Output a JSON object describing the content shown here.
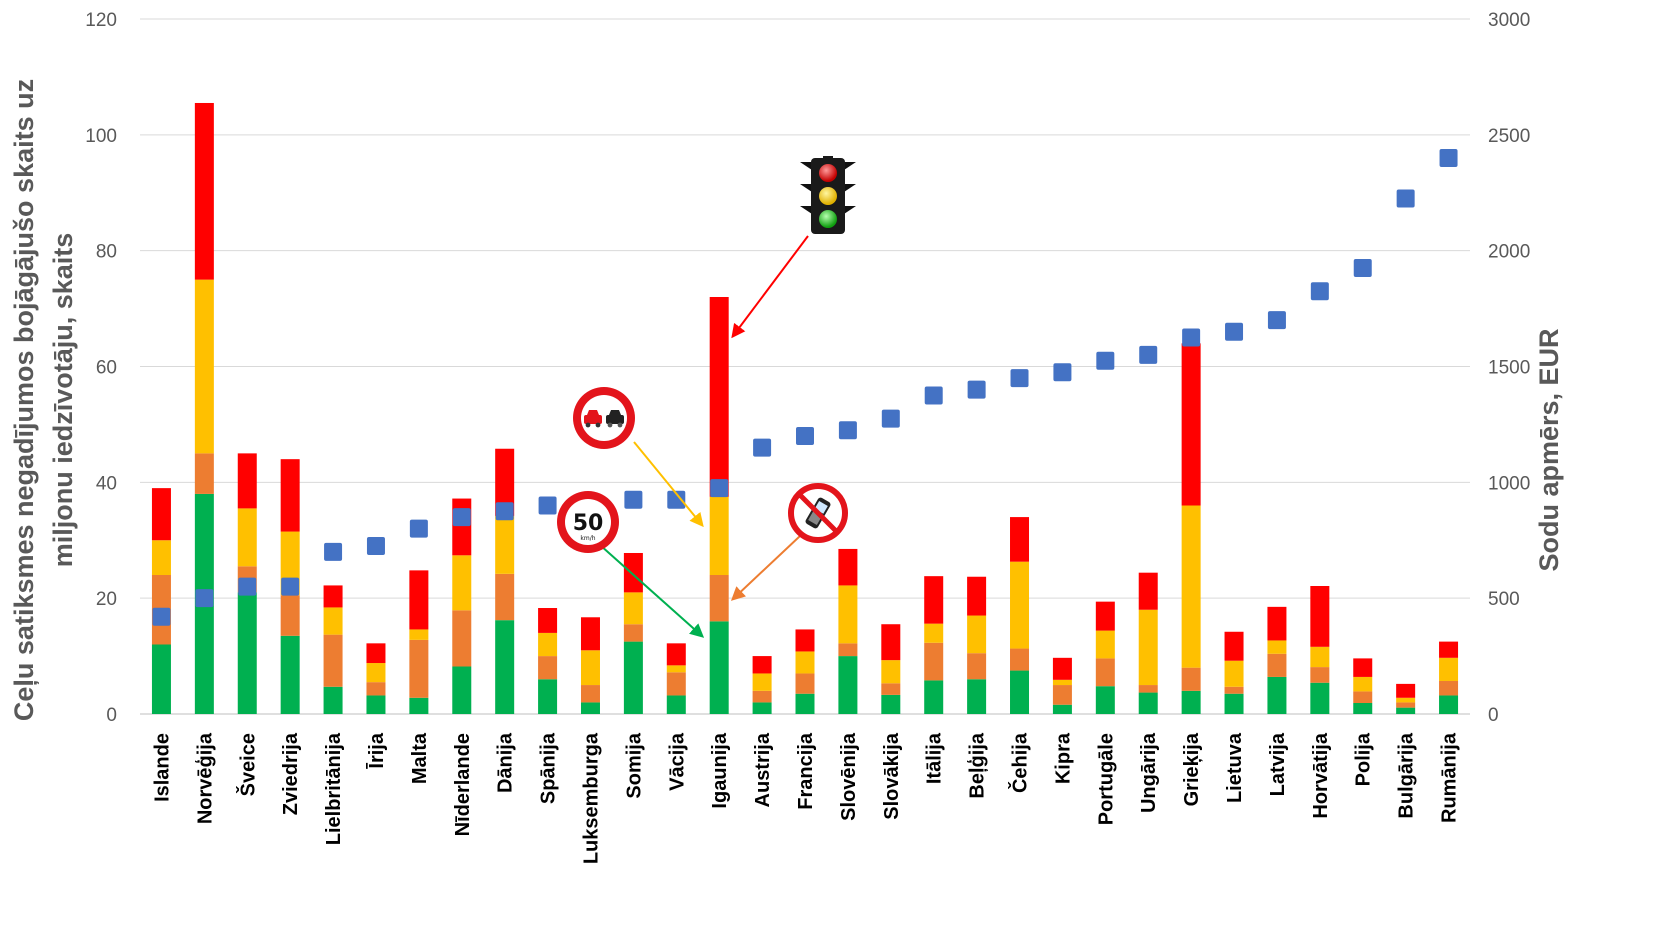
{
  "chart_data": {
    "type": "bar",
    "subtype": "stacked-bar-with-secondary-scatter",
    "categories": [
      "Islande",
      "Norvēģija",
      "Šveice",
      "Zviedrija",
      "Lielbritānija",
      "Īrija",
      "Malta",
      "Nīderlande",
      "Dānija",
      "Spānija",
      "Luksemburga",
      "Somija",
      "Vācija",
      "Igaunija",
      "Austrija",
      "Francija",
      "Slovēnija",
      "Slovākija",
      "Itālija",
      "Beļģija",
      "Čehija",
      "Kipra",
      "Portugāle",
      "Ungārija",
      "Grieķija",
      "Lietuva",
      "Latvija",
      "Horvātija",
      "Polija",
      "Bulgārija",
      "Rumānija"
    ],
    "ylabel": "Ceļu satiksmes negadījumos bojāgājušo skaits uz miljonu iedzīvotāju, skaits",
    "ylabel_lines": [
      "Ceļu satiksmes negadījumos bojāgājušo skaits uz",
      "miljonu iedzīvotāju, skaits"
    ],
    "y2label": "Sodu apmērs, EUR",
    "ylim": [
      0,
      120
    ],
    "y2lim": [
      0,
      3000
    ],
    "yticks": [
      0,
      20,
      40,
      60,
      80,
      100,
      120
    ],
    "y2ticks": [
      0,
      500,
      1000,
      1500,
      2000,
      2500,
      3000
    ],
    "grid": true,
    "legend": "none",
    "series": [
      {
        "color": "#00b050",
        "values": [
          12,
          38,
          21,
          13.5,
          4.7,
          3.2,
          2.8,
          8.2,
          16.2,
          6,
          2,
          12.5,
          3.2,
          16,
          2,
          3.5,
          10,
          3.3,
          5.8,
          6,
          7.5,
          1.6,
          4.8,
          3.7,
          4,
          3.5,
          6.4,
          5.4,
          1.9,
          1.1,
          3.2
        ]
      },
      {
        "color": "#ed7d31",
        "values": [
          12,
          7,
          4.5,
          7,
          9,
          2.3,
          10,
          9.7,
          8,
          4,
          3,
          3,
          4,
          8,
          2,
          3.5,
          2.2,
          2,
          6.5,
          4.5,
          3.8,
          3.4,
          4.8,
          1.3,
          4,
          1.2,
          4,
          2.7,
          2,
          0.9,
          2.5
        ]
      },
      {
        "color": "#ffc000",
        "values": [
          6,
          30,
          10,
          11,
          4.7,
          3.3,
          1.8,
          9.5,
          10,
          4,
          6,
          5.5,
          1.2,
          13.5,
          3,
          3.8,
          10,
          4,
          3.3,
          6.5,
          15,
          0.9,
          4.8,
          13,
          28,
          4.5,
          2.3,
          3.5,
          2.5,
          0.8,
          4
        ]
      },
      {
        "color": "#ff0000",
        "values": [
          9,
          30.5,
          9.5,
          12.5,
          3.8,
          3.4,
          10.2,
          9.8,
          11.6,
          4.3,
          5.7,
          6.8,
          3.8,
          34.5,
          3,
          3.8,
          6.3,
          6.2,
          8.2,
          6.7,
          7.7,
          3.8,
          5,
          6.4,
          28,
          5,
          5.8,
          10.5,
          3.2,
          2.4,
          2.8
        ]
      }
    ],
    "fines_eur": [
      420,
      500,
      550,
      550,
      700,
      725,
      800,
      850,
      875,
      900,
      925,
      925,
      975,
      1150,
      1200,
      1225,
      1275,
      1375,
      1400,
      1450,
      1475,
      1525,
      1550,
      1625,
      1650,
      1700,
      1825,
      1925,
      2225,
      2400
    ],
    "fines_countries": [
      "Islande",
      "Norvēģija",
      "Šveice",
      "Zviedrija",
      "Lielbritānija",
      "Īrija",
      "Malta",
      "Nīderlande",
      "Dānija",
      "Spānija",
      "Somija",
      "Vācija",
      "Igaunija",
      "Austrija",
      "Francija",
      "Slovēnija",
      "Slovākija",
      "Itālija",
      "Beļģija",
      "Čehija",
      "Kipra",
      "Portugāle",
      "Ungārija",
      "Grieķija",
      "Lietuva",
      "Latvija",
      "Horvātija",
      "Polija",
      "Bulgārija",
      "Rumānija"
    ],
    "fines_color": "#4472c4",
    "annotations": [
      {
        "icon": "traffic-light-icon",
        "target": "Igaunija",
        "arrow_color": "#ff0000"
      },
      {
        "icon": "no-overtaking-sign-icon",
        "target": "Igaunija",
        "arrow_color": "#ffc000"
      },
      {
        "icon": "speed-limit-50-sign-icon",
        "target": "Igaunija",
        "arrow_color": "#00b050",
        "text": "50",
        "subtext": "km/h"
      },
      {
        "icon": "no-phone-sign-icon",
        "target": "Igaunija",
        "arrow_color": "#ed7d31"
      }
    ]
  }
}
